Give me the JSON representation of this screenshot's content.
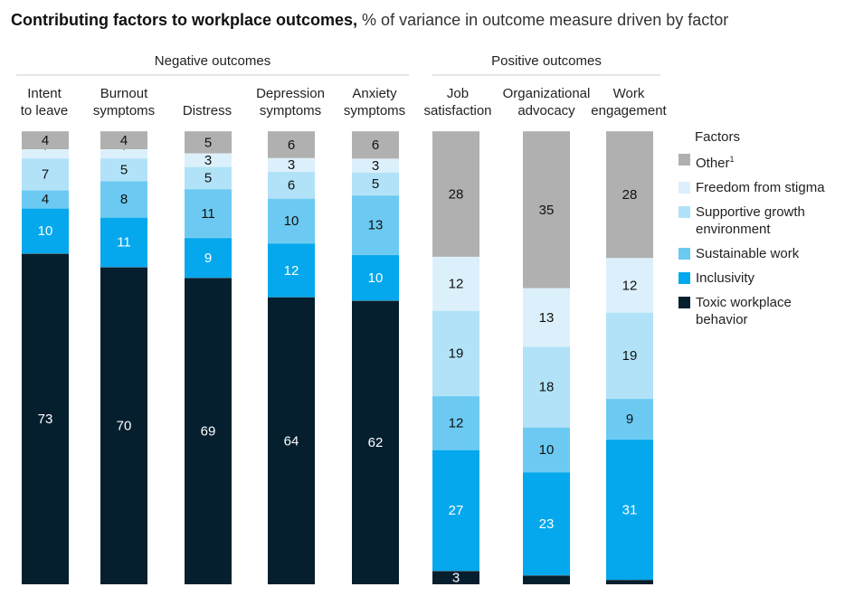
{
  "title": {
    "bold": "Contributing factors to workplace outcomes,",
    "light": " % of variance in outcome measure driven by factor"
  },
  "groups": {
    "negative": "Negative outcomes",
    "positive": "Positive outcomes"
  },
  "categories": [
    "Intent\nto leave",
    "Burnout\nsymptoms",
    "Distress",
    "Depression\nsymptoms",
    "Anxiety\nsymptoms",
    "Job\nsatisfaction",
    "Organizational\nadvocacy",
    "Work\nengagement"
  ],
  "legend": {
    "title": "Factors",
    "other_label": "Other",
    "other_footnote": "1",
    "items": [
      "Freedom from stigma",
      "Supportive growth environment",
      "Sustainable work",
      "Inclusivity",
      "Toxic workplace behavior"
    ]
  },
  "colors": {
    "other": "#b0b0b0",
    "stigma": "#dcf0fb",
    "growth": "#b1e2f8",
    "sustainable": "#6ccaf2",
    "inclusivity": "#05a8ec",
    "toxic": "#061f2f"
  },
  "chart_data": {
    "type": "bar",
    "stacked": true,
    "title": "Contributing factors to workplace outcomes",
    "subtitle": "% of variance in outcome measure driven by factor",
    "categories": [
      "Intent to leave",
      "Burnout symptoms",
      "Distress",
      "Depression symptoms",
      "Anxiety symptoms",
      "Job satisfaction",
      "Organizational advocacy",
      "Work engagement"
    ],
    "series": [
      {
        "name": "Toxic workplace behavior",
        "key": "toxic",
        "values": [
          73,
          70,
          69,
          64,
          62,
          3,
          2,
          1
        ]
      },
      {
        "name": "Inclusivity",
        "key": "inclusivity",
        "values": [
          10,
          11,
          9,
          12,
          10,
          27,
          23,
          31
        ]
      },
      {
        "name": "Sustainable work",
        "key": "sustainable",
        "values": [
          4,
          8,
          11,
          10,
          13,
          12,
          10,
          9
        ]
      },
      {
        "name": "Supportive growth environment",
        "key": "growth",
        "values": [
          7,
          5,
          5,
          6,
          5,
          19,
          18,
          19
        ]
      },
      {
        "name": "Freedom from stigma",
        "key": "stigma",
        "values": [
          2,
          2,
          3,
          3,
          3,
          12,
          13,
          12
        ]
      },
      {
        "name": "Other",
        "key": "other",
        "values": [
          4,
          4,
          5,
          6,
          6,
          28,
          35,
          28
        ]
      }
    ],
    "ylim": [
      0,
      100
    ],
    "xlabel": "",
    "ylabel": ""
  }
}
